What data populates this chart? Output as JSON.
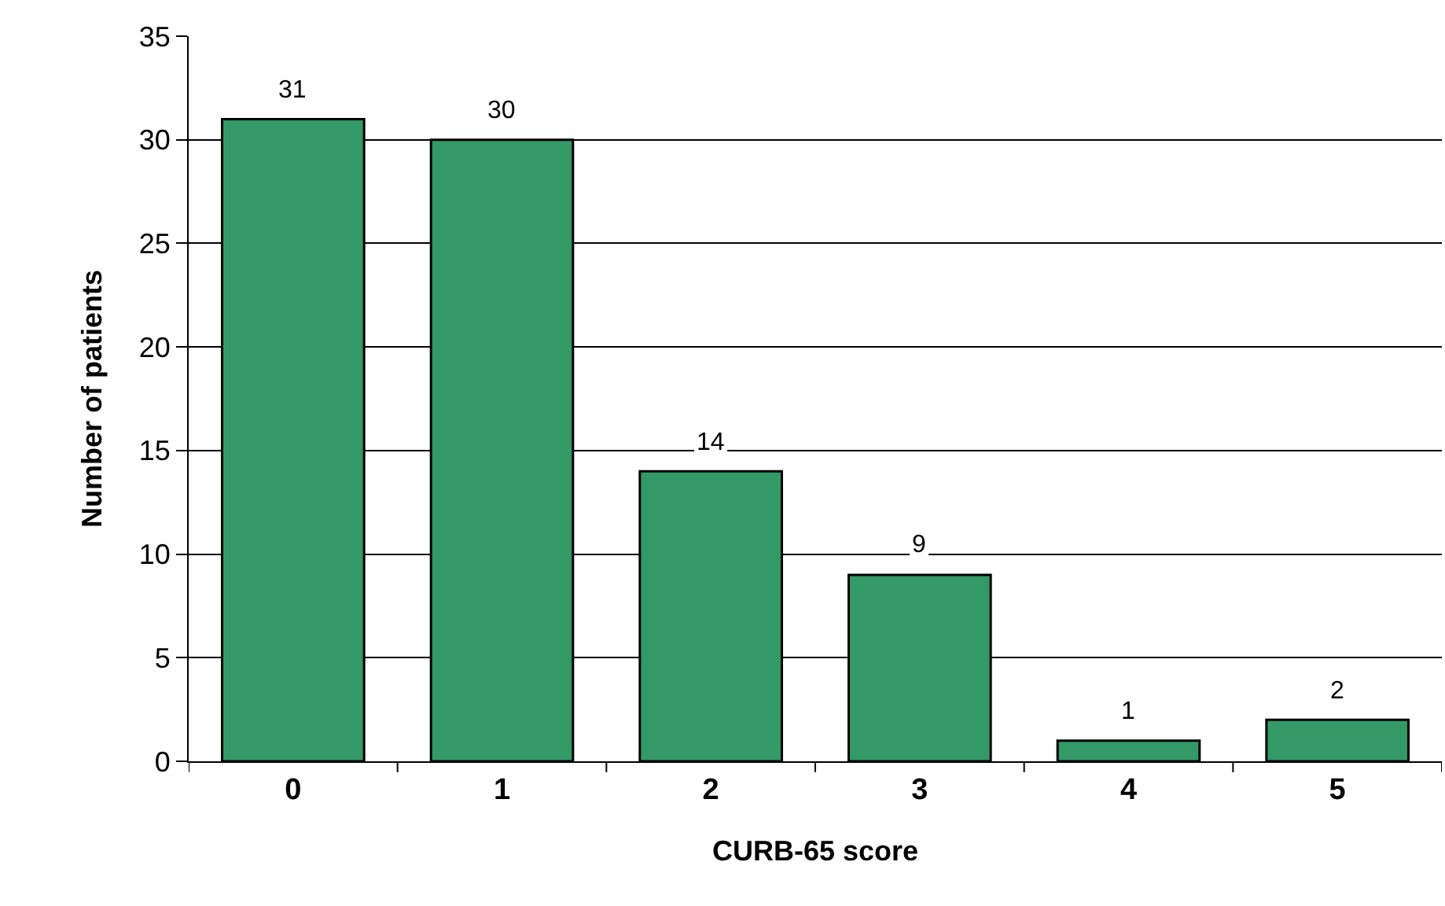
{
  "chart_data": {
    "type": "bar",
    "xlabel": "CURB-65 score",
    "ylabel": "Number of patients",
    "categories": [
      "0",
      "1",
      "2",
      "3",
      "4",
      "5"
    ],
    "values": [
      31,
      30,
      14,
      9,
      1,
      2
    ],
    "color": "#339966",
    "ylim": [
      0,
      35
    ],
    "yticks": [
      0,
      5,
      10,
      15,
      20,
      25,
      30,
      35
    ],
    "grid": "y",
    "data_labels": true
  }
}
